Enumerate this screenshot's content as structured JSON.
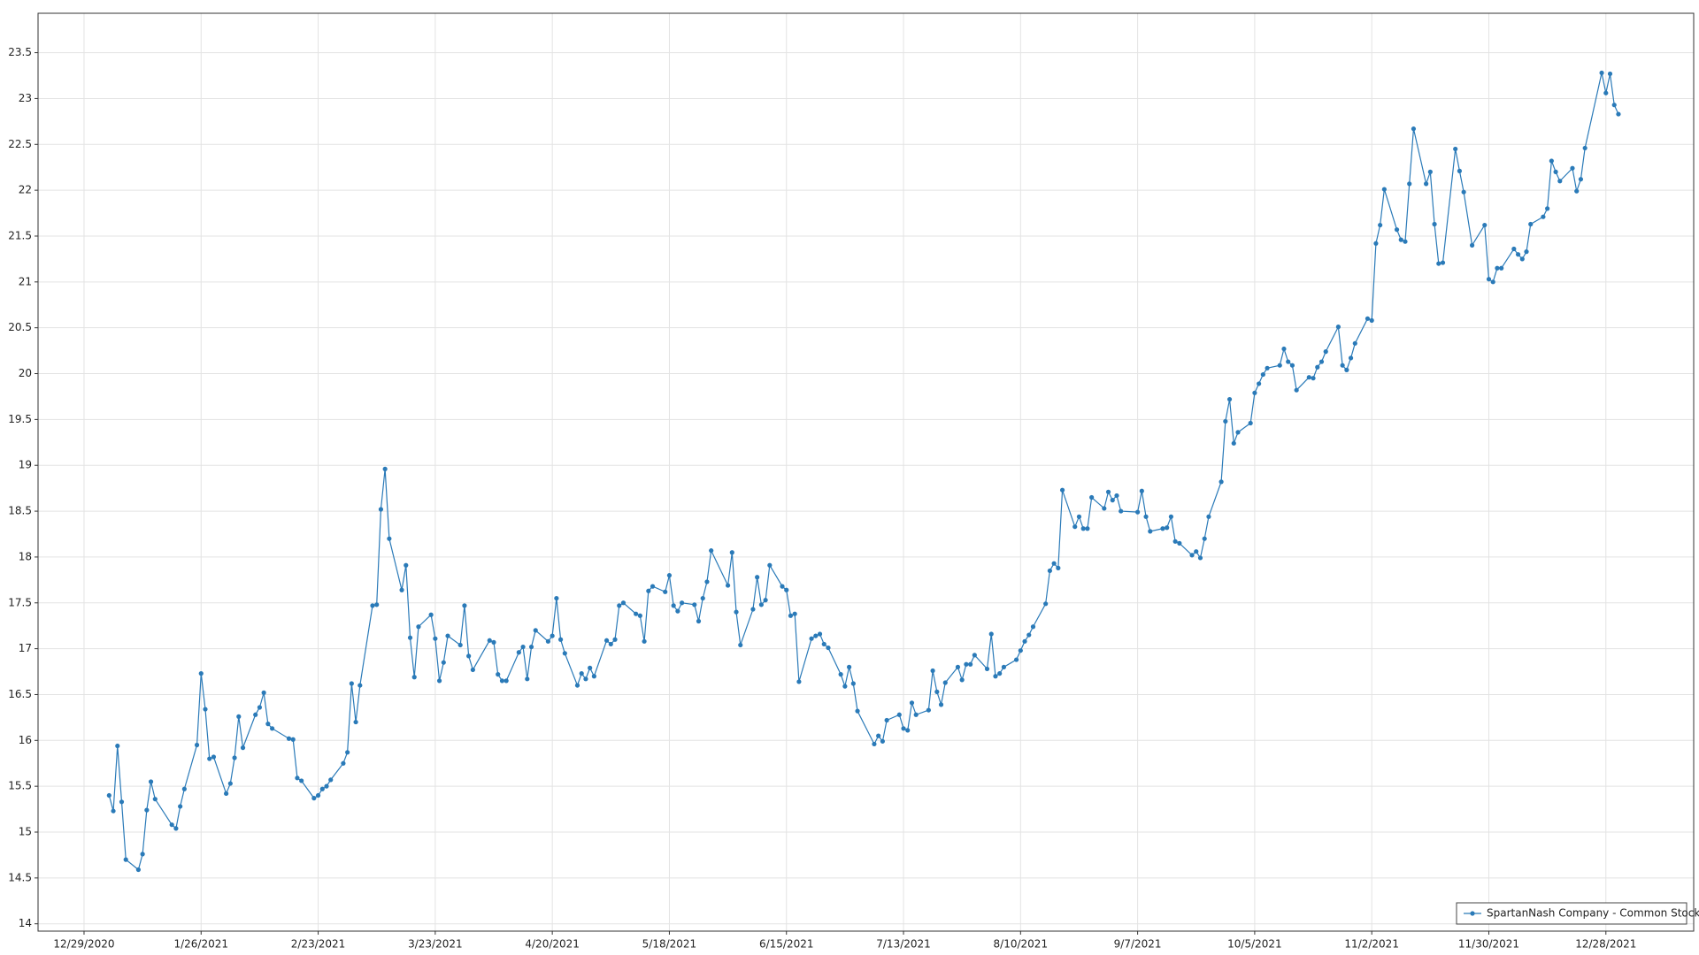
{
  "chart_data": {
    "type": "line",
    "x": [
      "1/4/2021",
      "1/5/2021",
      "1/6/2021",
      "1/7/2021",
      "1/8/2021",
      "1/11/2021",
      "1/12/2021",
      "1/13/2021",
      "1/14/2021",
      "1/15/2021",
      "1/19/2021",
      "1/20/2021",
      "1/21/2021",
      "1/22/2021",
      "1/25/2021",
      "1/26/2021",
      "1/27/2021",
      "1/28/2021",
      "1/29/2021",
      "2/1/2021",
      "2/2/2021",
      "2/3/2021",
      "2/4/2021",
      "2/5/2021",
      "2/8/2021",
      "2/9/2021",
      "2/10/2021",
      "2/11/2021",
      "2/12/2021",
      "2/16/2021",
      "2/17/2021",
      "2/18/2021",
      "2/19/2021",
      "2/22/2021",
      "2/23/2021",
      "2/24/2021",
      "2/25/2021",
      "2/26/2021",
      "3/1/2021",
      "3/2/2021",
      "3/3/2021",
      "3/4/2021",
      "3/5/2021",
      "3/8/2021",
      "3/9/2021",
      "3/10/2021",
      "3/11/2021",
      "3/12/2021",
      "3/15/2021",
      "3/16/2021",
      "3/17/2021",
      "3/18/2021",
      "3/19/2021",
      "3/22/2021",
      "3/23/2021",
      "3/24/2021",
      "3/25/2021",
      "3/26/2021",
      "3/29/2021",
      "3/30/2021",
      "3/31/2021",
      "4/1/2021",
      "4/5/2021",
      "4/6/2021",
      "4/7/2021",
      "4/8/2021",
      "4/9/2021",
      "4/12/2021",
      "4/13/2021",
      "4/14/2021",
      "4/15/2021",
      "4/16/2021",
      "4/19/2021",
      "4/20/2021",
      "4/21/2021",
      "4/22/2021",
      "4/23/2021",
      "4/26/2021",
      "4/27/2021",
      "4/28/2021",
      "4/29/2021",
      "4/30/2021",
      "5/3/2021",
      "5/4/2021",
      "5/5/2021",
      "5/6/2021",
      "5/7/2021",
      "5/10/2021",
      "5/11/2021",
      "5/12/2021",
      "5/13/2021",
      "5/14/2021",
      "5/17/2021",
      "5/18/2021",
      "5/19/2021",
      "5/20/2021",
      "5/21/2021",
      "5/24/2021",
      "5/25/2021",
      "5/26/2021",
      "5/27/2021",
      "5/28/2021",
      "6/1/2021",
      "6/2/2021",
      "6/3/2021",
      "6/4/2021",
      "6/7/2021",
      "6/8/2021",
      "6/9/2021",
      "6/10/2021",
      "6/11/2021",
      "6/14/2021",
      "6/15/2021",
      "6/16/2021",
      "6/17/2021",
      "6/18/2021",
      "6/21/2021",
      "6/22/2021",
      "6/23/2021",
      "6/24/2021",
      "6/25/2021",
      "6/28/2021",
      "6/29/2021",
      "6/30/2021",
      "7/1/2021",
      "7/2/2021",
      "7/6/2021",
      "7/7/2021",
      "7/8/2021",
      "7/9/2021",
      "7/12/2021",
      "7/13/2021",
      "7/14/2021",
      "7/15/2021",
      "7/16/2021",
      "7/19/2021",
      "7/20/2021",
      "7/21/2021",
      "7/22/2021",
      "7/23/2021",
      "7/26/2021",
      "7/27/2021",
      "7/28/2021",
      "7/29/2021",
      "7/30/2021",
      "8/2/2021",
      "8/3/2021",
      "8/4/2021",
      "8/5/2021",
      "8/6/2021",
      "8/9/2021",
      "8/10/2021",
      "8/11/2021",
      "8/12/2021",
      "8/13/2021",
      "8/16/2021",
      "8/17/2021",
      "8/18/2021",
      "8/19/2021",
      "8/20/2021",
      "8/23/2021",
      "8/24/2021",
      "8/25/2021",
      "8/26/2021",
      "8/27/2021",
      "8/30/2021",
      "8/31/2021",
      "9/1/2021",
      "9/2/2021",
      "9/3/2021",
      "9/7/2021",
      "9/8/2021",
      "9/9/2021",
      "9/10/2021",
      "9/13/2021",
      "9/14/2021",
      "9/15/2021",
      "9/16/2021",
      "9/17/2021",
      "9/20/2021",
      "9/21/2021",
      "9/22/2021",
      "9/23/2021",
      "9/24/2021",
      "9/27/2021",
      "9/28/2021",
      "9/29/2021",
      "9/30/2021",
      "10/1/2021",
      "10/4/2021",
      "10/5/2021",
      "10/6/2021",
      "10/7/2021",
      "10/8/2021",
      "10/11/2021",
      "10/12/2021",
      "10/13/2021",
      "10/14/2021",
      "10/15/2021",
      "10/18/2021",
      "10/19/2021",
      "10/20/2021",
      "10/21/2021",
      "10/22/2021",
      "10/25/2021",
      "10/26/2021",
      "10/27/2021",
      "10/28/2021",
      "10/29/2021",
      "11/1/2021",
      "11/2/2021",
      "11/3/2021",
      "11/4/2021",
      "11/5/2021",
      "11/8/2021",
      "11/9/2021",
      "11/10/2021",
      "11/11/2021",
      "11/12/2021",
      "11/15/2021",
      "11/16/2021",
      "11/17/2021",
      "11/18/2021",
      "11/19/2021",
      "11/22/2021",
      "11/23/2021",
      "11/24/2021",
      "11/26/2021",
      "11/29/2021",
      "11/30/2021",
      "12/1/2021",
      "12/2/2021",
      "12/3/2021",
      "12/6/2021",
      "12/7/2021",
      "12/8/2021",
      "12/9/2021",
      "12/10/2021",
      "12/13/2021",
      "12/14/2021",
      "12/15/2021",
      "12/16/2021",
      "12/17/2021",
      "12/20/2021",
      "12/21/2021",
      "12/22/2021",
      "12/23/2021",
      "12/27/2021",
      "12/28/2021",
      "12/29/2021",
      "12/30/2021",
      "12/31/2021"
    ],
    "series": [
      {
        "name": "SpartanNash Company - Common Stock",
        "color": "#2a7ab8",
        "values": [
          15.4,
          15.23,
          15.94,
          15.33,
          14.7,
          14.59,
          14.76,
          15.24,
          15.55,
          15.36,
          15.08,
          15.04,
          15.28,
          15.47,
          15.95,
          16.73,
          16.34,
          15.8,
          15.82,
          15.42,
          15.53,
          15.81,
          16.26,
          15.92,
          16.28,
          16.36,
          16.52,
          16.18,
          16.13,
          16.02,
          16.01,
          15.59,
          15.56,
          15.37,
          15.4,
          15.47,
          15.5,
          15.57,
          15.75,
          15.87,
          16.62,
          16.2,
          16.6,
          17.47,
          17.48,
          18.52,
          18.96,
          18.2,
          17.64,
          17.91,
          17.12,
          16.69,
          17.24,
          17.37,
          17.11,
          16.65,
          16.85,
          17.14,
          17.04,
          17.47,
          16.92,
          16.77,
          17.09,
          17.07,
          16.72,
          16.65,
          16.65,
          16.96,
          17.02,
          16.67,
          17.02,
          17.2,
          17.08,
          17.14,
          17.55,
          17.1,
          16.95,
          16.6,
          16.73,
          16.67,
          16.79,
          16.7,
          17.09,
          17.05,
          17.1,
          17.47,
          17.5,
          17.38,
          17.36,
          17.08,
          17.63,
          17.68,
          17.62,
          17.8,
          17.47,
          17.41,
          17.5,
          17.48,
          17.3,
          17.55,
          17.73,
          18.07,
          17.69,
          18.05,
          17.4,
          17.04,
          17.43,
          17.78,
          17.48,
          17.53,
          17.91,
          17.68,
          17.64,
          17.36,
          17.38,
          16.64,
          17.11,
          17.14,
          17.16,
          17.05,
          17.01,
          16.72,
          16.59,
          16.8,
          16.62,
          16.32,
          15.96,
          16.05,
          15.99,
          16.22,
          16.28,
          16.13,
          16.11,
          16.41,
          16.28,
          16.33,
          16.76,
          16.53,
          16.39,
          16.63,
          16.8,
          16.66,
          16.83,
          16.83,
          16.93,
          16.78,
          17.16,
          16.7,
          16.73,
          16.8,
          16.88,
          16.98,
          17.08,
          17.15,
          17.24,
          17.49,
          17.85,
          17.93,
          17.88,
          18.73,
          18.33,
          18.44,
          18.31,
          18.31,
          18.65,
          18.53,
          18.71,
          18.62,
          18.67,
          18.5,
          18.49,
          18.72,
          18.44,
          18.28,
          18.31,
          18.32,
          18.44,
          18.17,
          18.15,
          18.02,
          18.06,
          17.99,
          18.2,
          18.44,
          18.82,
          19.48,
          19.72,
          19.24,
          19.36,
          19.46,
          19.79,
          19.89,
          19.99,
          20.06,
          20.09,
          20.27,
          20.13,
          20.09,
          19.82,
          19.96,
          19.95,
          20.07,
          20.13,
          20.24,
          20.51,
          20.09,
          20.04,
          20.17,
          20.33,
          20.6,
          20.58,
          21.42,
          21.62,
          22.01,
          21.57,
          21.46,
          21.44,
          22.07,
          22.67,
          22.07,
          22.2,
          21.63,
          21.2,
          21.21,
          22.45,
          22.21,
          21.98,
          21.4,
          21.62,
          21.03,
          21.0,
          21.15,
          21.15,
          21.36,
          21.3,
          21.25,
          21.33,
          21.63,
          21.71,
          21.8,
          22.32,
          22.2,
          22.1,
          22.24,
          21.99,
          22.12,
          22.46,
          23.28,
          23.06,
          23.27,
          22.93,
          22.83
        ]
      }
    ],
    "xlim": [
      "12/18/2020",
      "1/18/2022"
    ],
    "xticks": [
      "12/29/2020",
      "1/26/2021",
      "2/23/2021",
      "3/23/2021",
      "4/20/2021",
      "5/18/2021",
      "6/15/2021",
      "7/13/2021",
      "8/10/2021",
      "9/7/2021",
      "10/5/2021",
      "11/2/2021",
      "11/30/2021",
      "12/28/2021"
    ],
    "ylim": [
      13.92,
      23.93
    ],
    "yticks": [
      14,
      14.5,
      15,
      15.5,
      16,
      16.5,
      17,
      17.5,
      18,
      18.5,
      19,
      19.5,
      20,
      20.5,
      21,
      21.5,
      22,
      22.5,
      23,
      23.5
    ],
    "grid": true,
    "legend": "lower right"
  }
}
